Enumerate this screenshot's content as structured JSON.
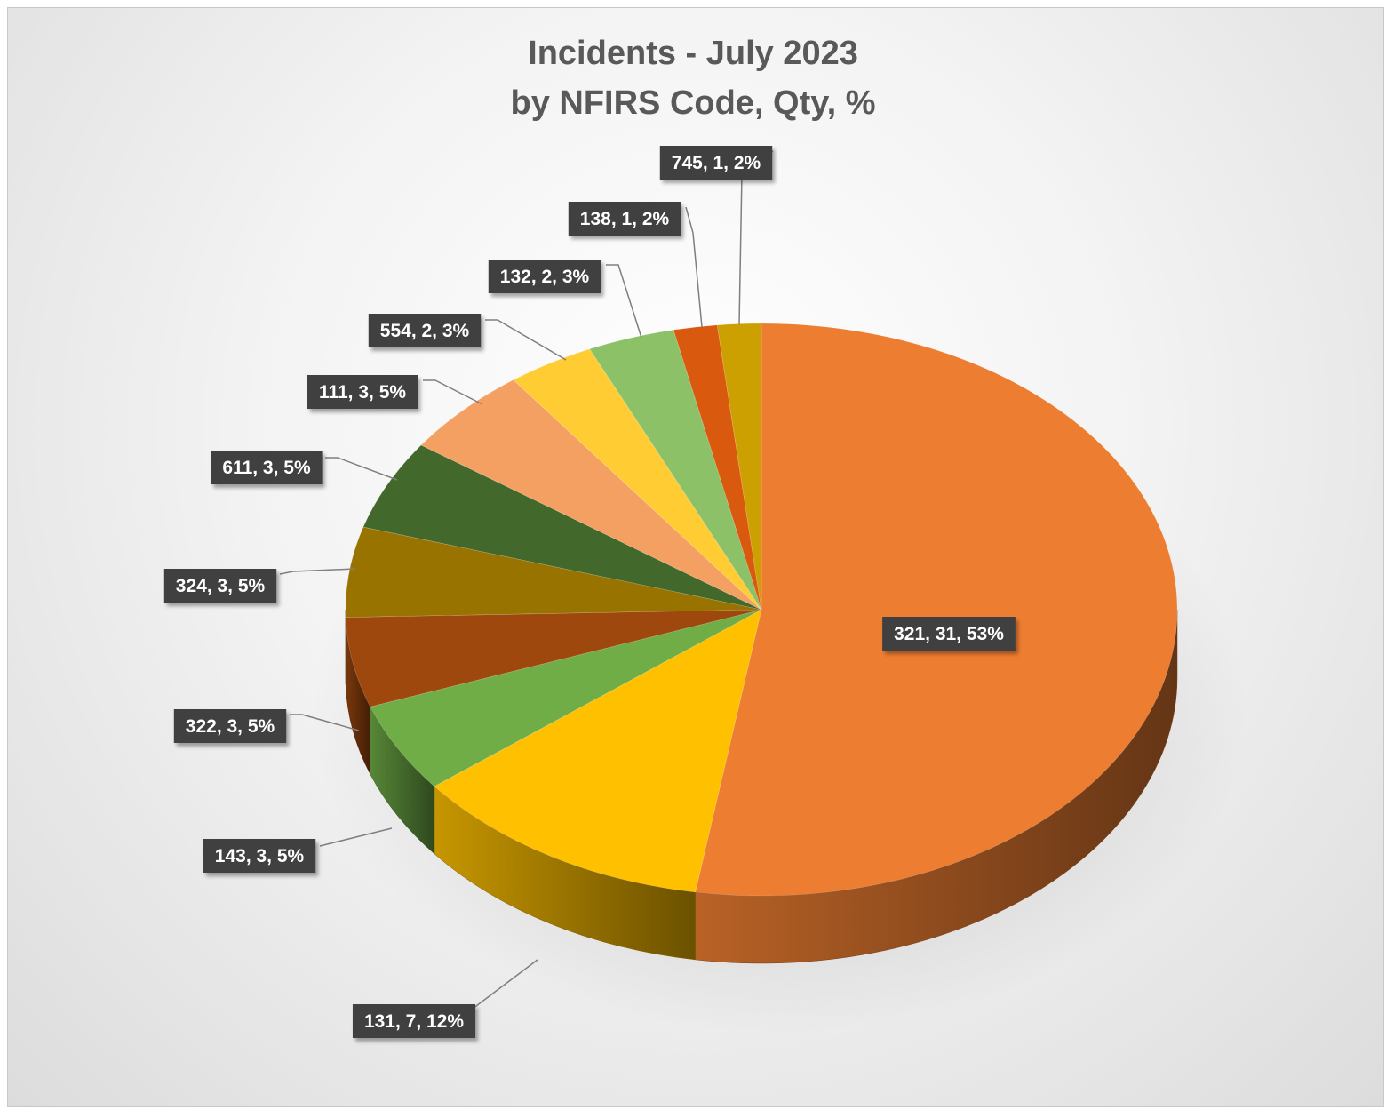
{
  "chart_data": {
    "type": "pie",
    "title": "Incidents - July 2023",
    "subtitle": "by NFIRS Code, Qty, %",
    "three_d": true,
    "legend": "none",
    "slices": [
      {
        "code": "321",
        "qty": 31,
        "pct": "53%",
        "label": "321, 31, 53%",
        "color": "#ED7D31"
      },
      {
        "code": "131",
        "qty": 7,
        "pct": "12%",
        "label": "131, 7, 12%",
        "color": "#FFC000"
      },
      {
        "code": "143",
        "qty": 3,
        "pct": "5%",
        "label": "143, 3, 5%",
        "color": "#70AD47"
      },
      {
        "code": "322",
        "qty": 3,
        "pct": "5%",
        "label": "322, 3, 5%",
        "color": "#9E480E"
      },
      {
        "code": "324",
        "qty": 3,
        "pct": "5%",
        "label": "324, 3, 5%",
        "color": "#997300"
      },
      {
        "code": "611",
        "qty": 3,
        "pct": "5%",
        "label": "611, 3, 5%",
        "color": "#43682B"
      },
      {
        "code": "111",
        "qty": 3,
        "pct": "5%",
        "label": "111, 3, 5%",
        "color": "#F4A062"
      },
      {
        "code": "554",
        "qty": 2,
        "pct": "3%",
        "label": "554, 2, 3%",
        "color": "#FFCD33"
      },
      {
        "code": "132",
        "qty": 2,
        "pct": "3%",
        "label": "132, 2, 3%",
        "color": "#8CC168"
      },
      {
        "code": "138",
        "qty": 1,
        "pct": "2%",
        "label": "138, 1, 2%",
        "color": "#D9590F"
      },
      {
        "code": "745",
        "qty": 1,
        "pct": "2%",
        "label": "745, 1, 2%",
        "color": "#CCA000"
      }
    ]
  }
}
